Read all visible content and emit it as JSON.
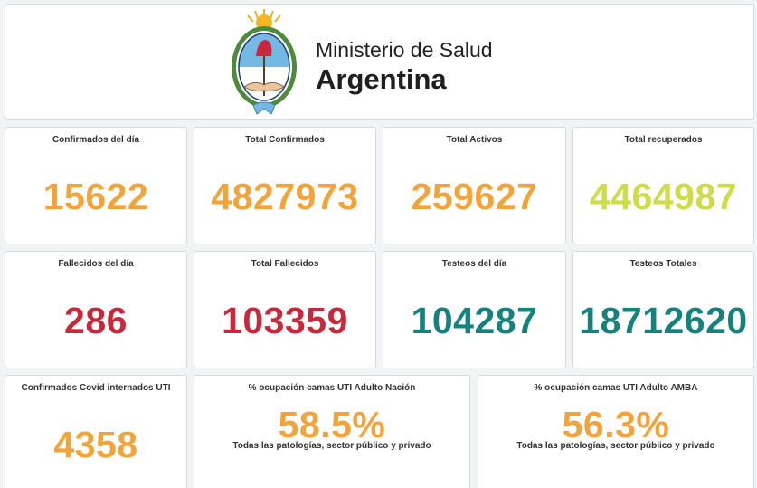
{
  "header": {
    "ministry_line": "Ministerio de Salud",
    "country_line": "Argentina",
    "logo": "argentina-coat-of-arms"
  },
  "colors": {
    "orange": "#f2a33a",
    "lime": "#cddc48",
    "red": "#c8283a",
    "teal": "#16827e",
    "card_border": "#d6dadf",
    "background": "#f1f3f5"
  },
  "stats": {
    "confirmados_dia": {
      "label": "Confirmados del día",
      "value": "15622",
      "color": "orange"
    },
    "total_confirmados": {
      "label": "Total Confirmados",
      "value": "4827973",
      "color": "orange"
    },
    "total_activos": {
      "label": "Total Activos",
      "value": "259627",
      "color": "orange"
    },
    "total_recuperados": {
      "label": "Total recuperados",
      "value": "4464987",
      "color": "lime"
    },
    "fallecidos_dia": {
      "label": "Fallecidos del día",
      "value": "286",
      "color": "red"
    },
    "total_fallecidos": {
      "label": "Total Fallecidos",
      "value": "103359",
      "color": "red"
    },
    "testeos_dia": {
      "label": "Testeos del día",
      "value": "104287",
      "color": "teal"
    },
    "testeos_totales": {
      "label": "Testeos Totales",
      "value": "18712620",
      "color": "teal"
    },
    "internados_uti": {
      "label": "Confirmados Covid internados UTI",
      "value": "4358",
      "color": "orange"
    },
    "ocupacion_nacion": {
      "label": "% ocupación camas UTI Adulto Nación",
      "value": "58.5%",
      "fraction": 0.585,
      "subtitle": "Todas las patologías, sector público y privado",
      "color": "orange"
    },
    "ocupacion_amba": {
      "label": "% ocupación camas UTI Adulto AMBA",
      "value": "56.3%",
      "fraction": 0.563,
      "subtitle": "Todas las patologías, sector público y privado",
      "color": "orange"
    }
  }
}
